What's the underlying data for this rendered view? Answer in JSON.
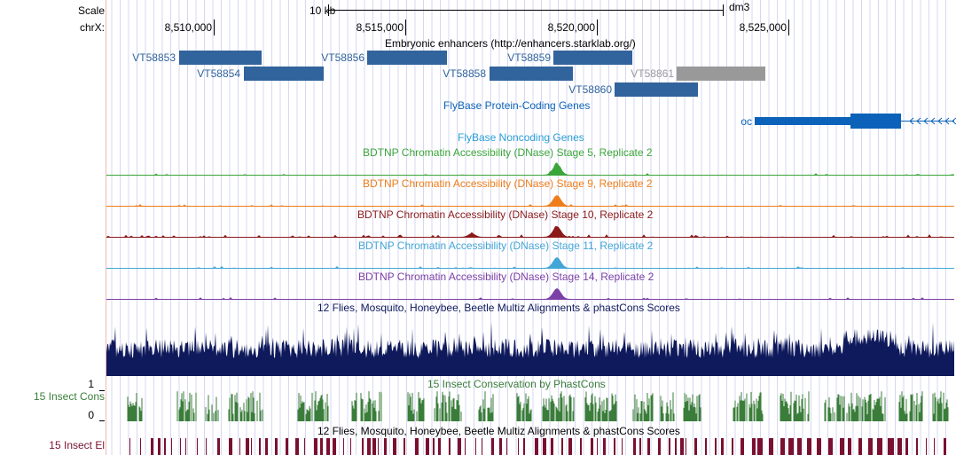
{
  "ruler": {
    "scale_label": "Scale",
    "chrom_label": "chrX:",
    "scale_bar_text": "10 kb",
    "assembly": "dm3",
    "ticks": [
      "8,510,000",
      "8,515,000",
      "8,520,000",
      "8,525,000"
    ]
  },
  "tracks": {
    "enhancers": {
      "title": "Embryonic enhancers (http://enhancers.starklab.org/)",
      "features": [
        {
          "name": "VT58853",
          "color": "#31639c"
        },
        {
          "name": "VT58854",
          "color": "#31639c"
        },
        {
          "name": "VT58856",
          "color": "#31639c"
        },
        {
          "name": "VT58858",
          "color": "#31639c"
        },
        {
          "name": "VT58859",
          "color": "#31639c"
        },
        {
          "name": "VT58860",
          "color": "#31639c"
        },
        {
          "name": "VT58861",
          "color": "#999999"
        }
      ]
    },
    "coding_genes": {
      "title": "FlyBase Protein-Coding Genes",
      "gene": "oc",
      "color": "#0b62b8"
    },
    "noncoding_genes": {
      "title": "FlyBase Noncoding Genes",
      "color": "#2a9fd6"
    },
    "dnase": [
      {
        "title": "BDTNP Chromatin Accessibility (DNase) Stage 5, Replicate 2",
        "color": "#3aa53a"
      },
      {
        "title": "BDTNP Chromatin Accessibility (DNase) Stage 9, Replicate 2",
        "color": "#ee7d1a"
      },
      {
        "title": "BDTNP Chromatin Accessibility (DNase) Stage 10, Replicate 2",
        "color": "#8b1a1a"
      },
      {
        "title": "BDTNP Chromatin Accessibility (DNase) Stage 11, Replicate 2",
        "color": "#43a6d6"
      },
      {
        "title": "BDTNP Chromatin Accessibility (DNase) Stage 14, Replicate 2",
        "color": "#7b3fa5"
      }
    ],
    "multiz": {
      "title": "12 Flies, Mosquito, Honeybee, Beetle Multiz Alignments & phastCons Scores",
      "color": "#0f1a5c"
    },
    "cons": {
      "title": "15 Insect Conservation by PhastCons",
      "side_label": "15 Insect Cons",
      "max_label": "1",
      "min_label": "0",
      "color": "#3a7d3a"
    },
    "elements": {
      "title": "12 Flies, Mosquito, Honeybee, Beetle Multiz Alignments & phastCons Scores",
      "side_label": "15 Insect El",
      "color": "#7a1030"
    }
  }
}
